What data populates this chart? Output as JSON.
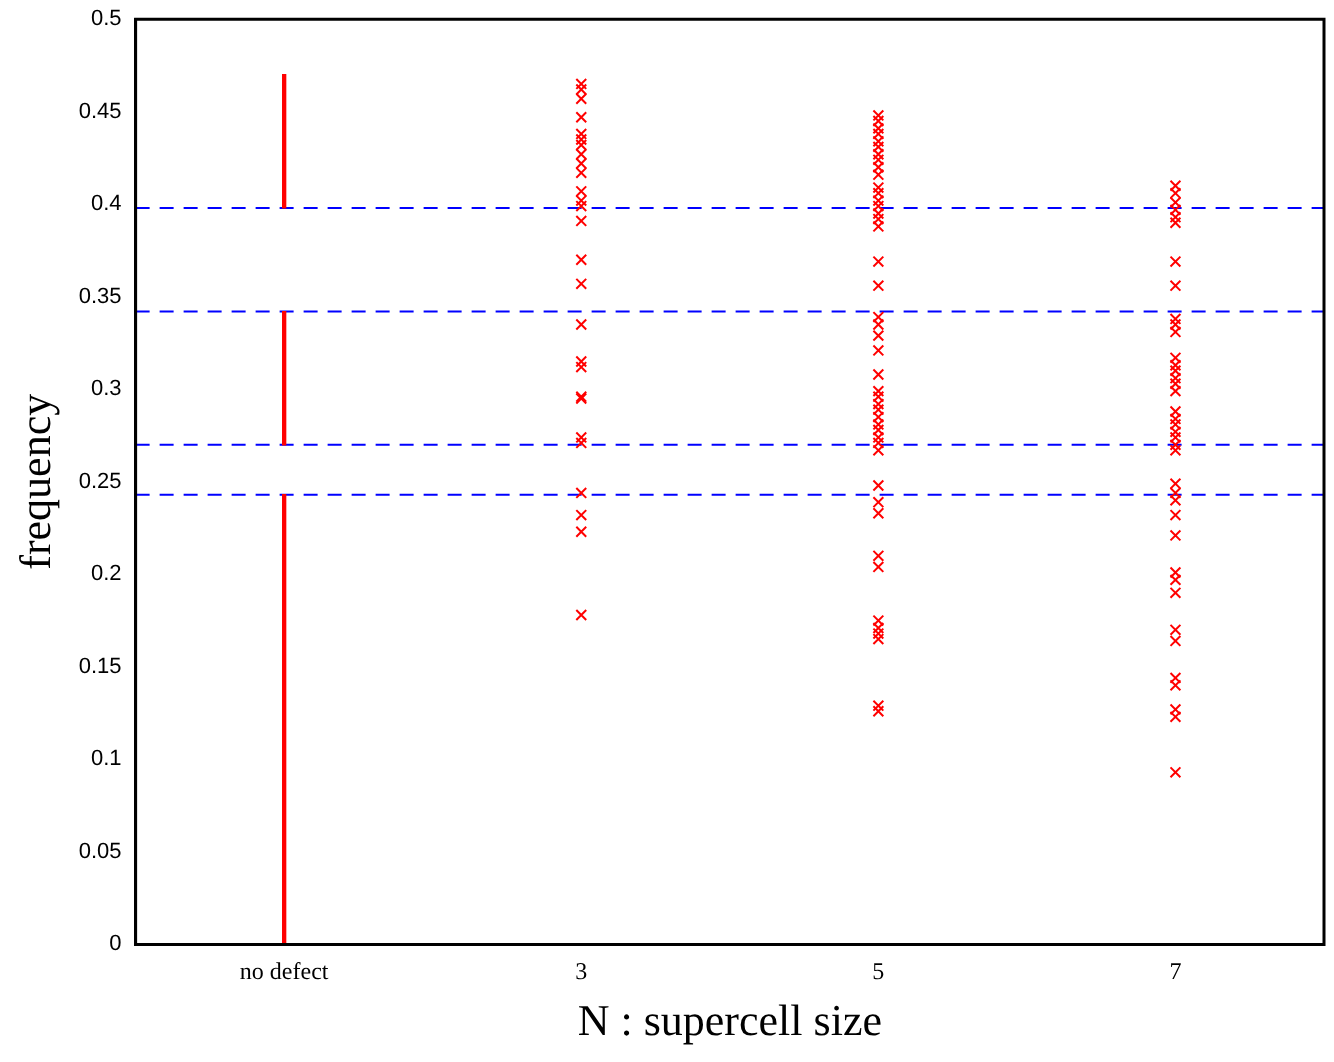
{
  "chart_data": {
    "type": "scatter",
    "xlabel": "N : supercell size",
    "ylabel": "frequency",
    "categories": [
      "no defect",
      "3",
      "5",
      "7"
    ],
    "ylim": [
      0,
      0.5
    ],
    "yticks": [
      0,
      0.05,
      0.1,
      0.15,
      0.2,
      0.25,
      0.3,
      0.35,
      0.4,
      0.45,
      0.5
    ],
    "grid": false,
    "legend": false,
    "marker": "cross",
    "series": [
      {
        "type": "bar",
        "color": "#ff0000",
        "base": [
          0,
          null,
          null,
          null
        ],
        "values": [
          0.243,
          null,
          null,
          null
        ]
      },
      {
        "type": "bar",
        "color": "#ff0000",
        "base": [
          0.27,
          null,
          null,
          null
        ],
        "values": [
          0.072,
          null,
          null,
          null
        ]
      },
      {
        "type": "bar",
        "color": "#ff0000",
        "base": [
          0.398,
          null,
          null,
          null
        ],
        "values": [
          0.072,
          null,
          null,
          null
        ]
      },
      {
        "color": "#ff0000",
        "x": [
          "3",
          "3",
          "3",
          "3",
          "3",
          "3",
          "3",
          "3",
          "3",
          "3",
          "3",
          "3",
          "3",
          "3",
          "3",
          "3",
          "3",
          "3",
          "3",
          "3",
          "3",
          "3",
          "3",
          "3",
          "3",
          "3",
          "3"
        ],
        "values": [
          0.465,
          0.462,
          0.457,
          0.447,
          0.438,
          0.435,
          0.432,
          0.427,
          0.422,
          0.417,
          0.407,
          0.402,
          0.399,
          0.391,
          0.37,
          0.357,
          0.335,
          0.315,
          0.312,
          0.296,
          0.295,
          0.274,
          0.271,
          0.244,
          0.232,
          0.223,
          0.178
        ]
      },
      {
        "color": "#ff0000",
        "x": [
          "5",
          "5",
          "5",
          "5",
          "5",
          "5",
          "5",
          "5",
          "5",
          "5",
          "5",
          "5",
          "5",
          "5",
          "5",
          "5",
          "5",
          "5",
          "5",
          "5",
          "5",
          "5",
          "5",
          "5",
          "5",
          "5",
          "5",
          "5",
          "5",
          "5",
          "5",
          "5",
          "5",
          "5",
          "5",
          "5",
          "5",
          "5",
          "5",
          "5",
          "5",
          "5",
          "5",
          "5",
          "5"
        ],
        "values": [
          0.448,
          0.445,
          0.441,
          0.438,
          0.434,
          0.431,
          0.427,
          0.424,
          0.42,
          0.416,
          0.409,
          0.406,
          0.402,
          0.399,
          0.395,
          0.392,
          0.388,
          0.369,
          0.356,
          0.339,
          0.335,
          0.329,
          0.321,
          0.308,
          0.299,
          0.296,
          0.292,
          0.289,
          0.285,
          0.281,
          0.278,
          0.274,
          0.271,
          0.267,
          0.248,
          0.239,
          0.233,
          0.21,
          0.204,
          0.175,
          0.171,
          0.168,
          0.165,
          0.129,
          0.126
        ]
      },
      {
        "color": "#ff0000",
        "x": [
          "7",
          "7",
          "7",
          "7",
          "7",
          "7",
          "7",
          "7",
          "7",
          "7",
          "7",
          "7",
          "7",
          "7",
          "7",
          "7",
          "7",
          "7",
          "7",
          "7",
          "7",
          "7",
          "7",
          "7",
          "7",
          "7",
          "7",
          "7",
          "7",
          "7",
          "7",
          "7",
          "7",
          "7",
          "7",
          "7",
          "7",
          "7",
          "7"
        ],
        "values": [
          0.41,
          0.406,
          0.401,
          0.397,
          0.393,
          0.39,
          0.369,
          0.356,
          0.338,
          0.335,
          0.331,
          0.317,
          0.313,
          0.31,
          0.306,
          0.303,
          0.299,
          0.288,
          0.284,
          0.281,
          0.277,
          0.274,
          0.27,
          0.267,
          0.249,
          0.244,
          0.24,
          0.232,
          0.221,
          0.201,
          0.197,
          0.19,
          0.17,
          0.164,
          0.144,
          0.14,
          0.127,
          0.123,
          0.093
        ]
      }
    ],
    "ref_lines": [
      {
        "axis": "y",
        "value": 0.398,
        "color": "#0000ff",
        "line_style": "dashed"
      },
      {
        "axis": "y",
        "value": 0.342,
        "color": "#0000ff",
        "line_style": "dashed"
      },
      {
        "axis": "y",
        "value": 0.27,
        "color": "#0000ff",
        "line_style": "dashed"
      },
      {
        "axis": "y",
        "value": 0.243,
        "color": "#0000ff",
        "line_style": "dashed"
      }
    ]
  }
}
